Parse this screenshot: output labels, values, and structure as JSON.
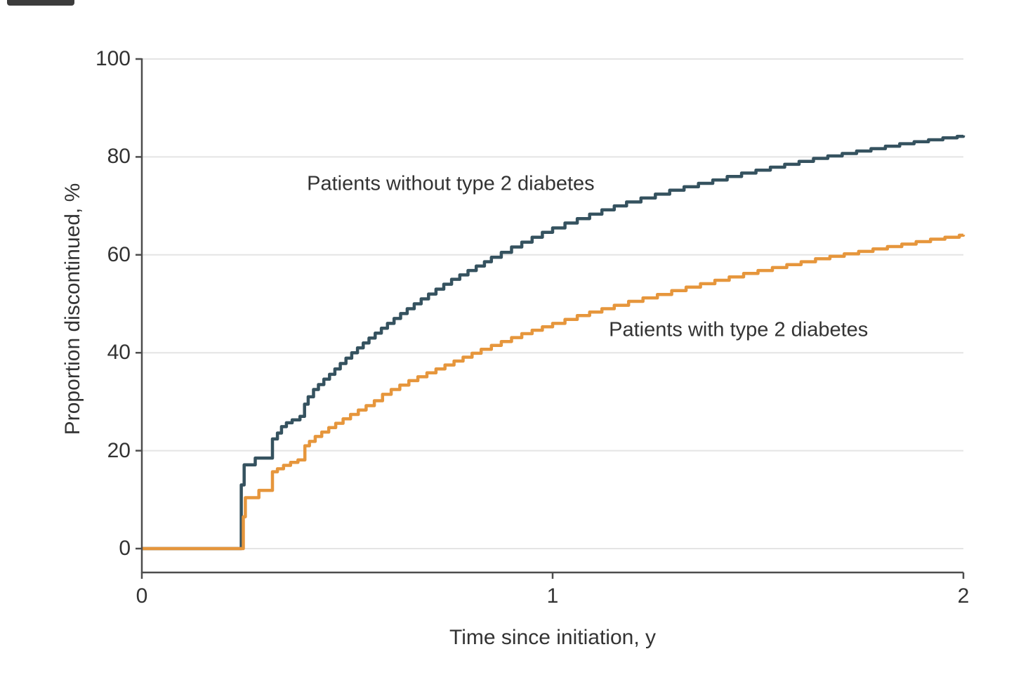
{
  "colors": {
    "background": "#ffffff",
    "text": "#333333",
    "axis": "#4d4d4d",
    "grid": "#e4e4e4",
    "curve_without_diabetes": "#35525f",
    "curve_with_diabetes": "#e6963c"
  },
  "chart_data": {
    "type": "line",
    "subtype": "kaplan-meier-step",
    "title": "",
    "xlabel": "Time since initiation, y",
    "ylabel": "Proportion discontinued, %",
    "xlim": [
      0,
      2
    ],
    "ylim": [
      0,
      100
    ],
    "x_ticks": [
      0,
      1,
      2
    ],
    "x_tick_labels": [
      "0",
      "1",
      "2"
    ],
    "y_ticks": [
      0,
      20,
      40,
      60,
      80,
      100
    ],
    "y_tick_labels": [
      "0",
      "20",
      "40",
      "60",
      "80",
      "100"
    ],
    "grid": "horizontal gridlines at each y tick",
    "legend_position": "inline labels next to curves",
    "series": [
      {
        "name": "Patients without type 2 diabetes",
        "color": "#35525f",
        "label_x": 0.402,
        "label_y": 74.5,
        "points": [
          [
            0.0,
            0
          ],
          [
            0.242,
            13.0
          ],
          [
            0.249,
            17.1
          ],
          [
            0.276,
            18.5
          ],
          [
            0.318,
            22.4
          ],
          [
            0.33,
            23.6
          ],
          [
            0.34,
            24.9
          ],
          [
            0.352,
            25.7
          ],
          [
            0.366,
            26.3
          ],
          [
            0.385,
            27.0
          ],
          [
            0.396,
            29.5
          ],
          [
            0.405,
            31.0
          ],
          [
            0.418,
            32.5
          ],
          [
            0.43,
            33.5
          ],
          [
            0.443,
            34.6
          ],
          [
            0.457,
            35.6
          ],
          [
            0.47,
            36.7
          ],
          [
            0.483,
            37.8
          ],
          [
            0.497,
            38.9
          ],
          [
            0.511,
            40.0
          ],
          [
            0.525,
            41.0
          ],
          [
            0.539,
            42.0
          ],
          [
            0.553,
            43.0
          ],
          [
            0.568,
            44.0
          ],
          [
            0.583,
            45.0
          ],
          [
            0.598,
            46.0
          ],
          [
            0.614,
            47.0
          ],
          [
            0.63,
            48.0
          ],
          [
            0.646,
            49.0
          ],
          [
            0.663,
            50.0
          ],
          [
            0.68,
            51.0
          ],
          [
            0.698,
            52.0
          ],
          [
            0.716,
            53.0
          ],
          [
            0.735,
            54.0
          ],
          [
            0.754,
            55.0
          ],
          [
            0.774,
            55.9
          ],
          [
            0.794,
            56.8
          ],
          [
            0.814,
            57.7
          ],
          [
            0.834,
            58.6
          ],
          [
            0.851,
            59.5
          ],
          [
            0.875,
            60.5
          ],
          [
            0.9,
            61.6
          ],
          [
            0.925,
            62.6
          ],
          [
            0.95,
            63.6
          ],
          [
            0.975,
            64.6
          ],
          [
            1.0,
            65.5
          ],
          [
            1.03,
            66.5
          ],
          [
            1.06,
            67.4
          ],
          [
            1.09,
            68.3
          ],
          [
            1.12,
            69.2
          ],
          [
            1.15,
            70.0
          ],
          [
            1.18,
            70.8
          ],
          [
            1.215,
            71.6
          ],
          [
            1.25,
            72.4
          ],
          [
            1.285,
            73.2
          ],
          [
            1.32,
            73.9
          ],
          [
            1.355,
            74.6
          ],
          [
            1.39,
            75.3
          ],
          [
            1.425,
            76.0
          ],
          [
            1.46,
            76.7
          ],
          [
            1.495,
            77.3
          ],
          [
            1.53,
            77.9
          ],
          [
            1.565,
            78.5
          ],
          [
            1.6,
            79.1
          ],
          [
            1.635,
            79.7
          ],
          [
            1.67,
            80.2
          ],
          [
            1.705,
            80.7
          ],
          [
            1.74,
            81.2
          ],
          [
            1.775,
            81.7
          ],
          [
            1.81,
            82.2
          ],
          [
            1.845,
            82.7
          ],
          [
            1.88,
            83.1
          ],
          [
            1.915,
            83.5
          ],
          [
            1.95,
            83.9
          ],
          [
            1.985,
            84.2
          ],
          [
            2.0,
            84.4
          ]
        ]
      },
      {
        "name": "Patients with type 2 diabetes",
        "color": "#e6963c",
        "label_x": 1.137,
        "label_y": 44.6,
        "points": [
          [
            0.0,
            0
          ],
          [
            0.247,
            6.5
          ],
          [
            0.252,
            10.4
          ],
          [
            0.285,
            11.9
          ],
          [
            0.318,
            15.7
          ],
          [
            0.33,
            16.3
          ],
          [
            0.345,
            17.0
          ],
          [
            0.362,
            17.6
          ],
          [
            0.38,
            18.1
          ],
          [
            0.397,
            21.0
          ],
          [
            0.408,
            21.9
          ],
          [
            0.422,
            22.9
          ],
          [
            0.438,
            23.8
          ],
          [
            0.455,
            24.7
          ],
          [
            0.472,
            25.6
          ],
          [
            0.49,
            26.5
          ],
          [
            0.508,
            27.4
          ],
          [
            0.527,
            28.3
          ],
          [
            0.546,
            29.2
          ],
          [
            0.566,
            30.2
          ],
          [
            0.586,
            31.5
          ],
          [
            0.607,
            32.5
          ],
          [
            0.628,
            33.4
          ],
          [
            0.65,
            34.3
          ],
          [
            0.672,
            35.1
          ],
          [
            0.694,
            35.9
          ],
          [
            0.716,
            36.7
          ],
          [
            0.738,
            37.5
          ],
          [
            0.76,
            38.3
          ],
          [
            0.782,
            39.1
          ],
          [
            0.804,
            39.9
          ],
          [
            0.826,
            40.7
          ],
          [
            0.851,
            41.5
          ],
          [
            0.875,
            42.3
          ],
          [
            0.9,
            43.1
          ],
          [
            0.925,
            43.9
          ],
          [
            0.95,
            44.6
          ],
          [
            0.975,
            45.3
          ],
          [
            1.0,
            46.0
          ],
          [
            1.03,
            46.8
          ],
          [
            1.06,
            47.6
          ],
          [
            1.09,
            48.3
          ],
          [
            1.12,
            49.0
          ],
          [
            1.15,
            49.7
          ],
          [
            1.185,
            50.5
          ],
          [
            1.22,
            51.2
          ],
          [
            1.255,
            51.9
          ],
          [
            1.29,
            52.7
          ],
          [
            1.325,
            53.4
          ],
          [
            1.36,
            54.1
          ],
          [
            1.395,
            54.8
          ],
          [
            1.43,
            55.5
          ],
          [
            1.465,
            56.2
          ],
          [
            1.5,
            56.8
          ],
          [
            1.535,
            57.4
          ],
          [
            1.57,
            58.0
          ],
          [
            1.605,
            58.6
          ],
          [
            1.64,
            59.2
          ],
          [
            1.675,
            59.7
          ],
          [
            1.71,
            60.2
          ],
          [
            1.745,
            60.7
          ],
          [
            1.78,
            61.2
          ],
          [
            1.815,
            61.7
          ],
          [
            1.85,
            62.2
          ],
          [
            1.885,
            62.7
          ],
          [
            1.92,
            63.2
          ],
          [
            1.955,
            63.6
          ],
          [
            1.99,
            64.0
          ],
          [
            2.0,
            64.1
          ]
        ]
      }
    ]
  }
}
